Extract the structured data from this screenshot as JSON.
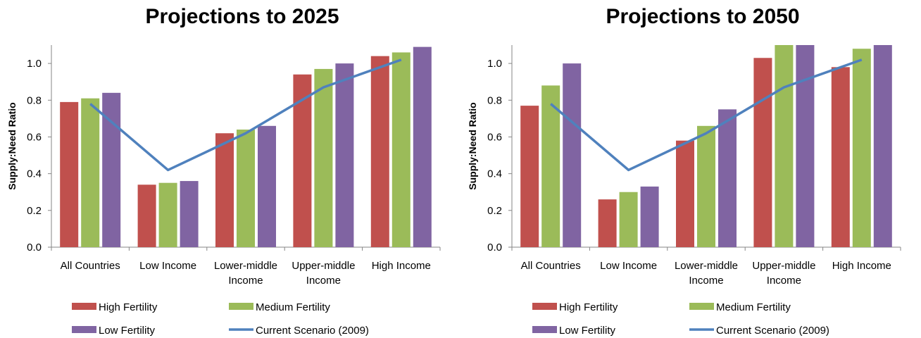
{
  "chart_data": [
    {
      "type": "bar",
      "title": "Projections to 2025",
      "ylabel": "Supply:Need Ratio",
      "ylim": [
        0,
        1.1
      ],
      "yticks": [
        "0.0",
        "0.2",
        "0.4",
        "0.6",
        "0.8",
        "1.0"
      ],
      "categories": [
        [
          "All Countries"
        ],
        [
          "Low Income"
        ],
        [
          "Lower-middle",
          "Income"
        ],
        [
          "Upper-middle",
          "Income"
        ],
        [
          "High Income"
        ]
      ],
      "series": [
        {
          "name": "High Fertility",
          "color": "#c0504d",
          "values": [
            0.79,
            0.34,
            0.62,
            0.94,
            1.04
          ]
        },
        {
          "name": "Medium Fertility",
          "color": "#9bbb59",
          "values": [
            0.81,
            0.35,
            0.64,
            0.97,
            1.06
          ]
        },
        {
          "name": "Low Fertility",
          "color": "#8064a2",
          "values": [
            0.84,
            0.36,
            0.66,
            1.0,
            1.09
          ]
        }
      ],
      "line_series": {
        "name": "Current Scenario (2009)",
        "color": "#4f81bd",
        "values": [
          0.78,
          0.42,
          0.62,
          0.87,
          1.02
        ]
      },
      "legend": "bottom",
      "grid": false
    },
    {
      "type": "bar",
      "title": "Projections to 2050",
      "ylabel": "Supply:Need Ratio",
      "ylim": [
        0,
        1.1
      ],
      "yticks": [
        "0.0",
        "0.2",
        "0.4",
        "0.6",
        "0.8",
        "1.0"
      ],
      "categories": [
        [
          "All Countries"
        ],
        [
          "Low Income"
        ],
        [
          "Lower-middle",
          "Income"
        ],
        [
          "Upper-middle",
          "Income"
        ],
        [
          "High Income"
        ]
      ],
      "series": [
        {
          "name": "High Fertility",
          "color": "#c0504d",
          "values": [
            0.77,
            0.26,
            0.58,
            1.03,
            0.98
          ]
        },
        {
          "name": "Medium Fertility",
          "color": "#9bbb59",
          "values": [
            0.88,
            0.3,
            0.66,
            1.1,
            1.08
          ]
        },
        {
          "name": "Low Fertility",
          "color": "#8064a2",
          "values": [
            1.0,
            0.33,
            0.75,
            1.1,
            1.1
          ]
        }
      ],
      "line_series": {
        "name": "Current Scenario (2009)",
        "color": "#4f81bd",
        "values": [
          0.78,
          0.42,
          0.62,
          0.87,
          1.02
        ]
      },
      "legend": "bottom",
      "grid": false
    }
  ]
}
